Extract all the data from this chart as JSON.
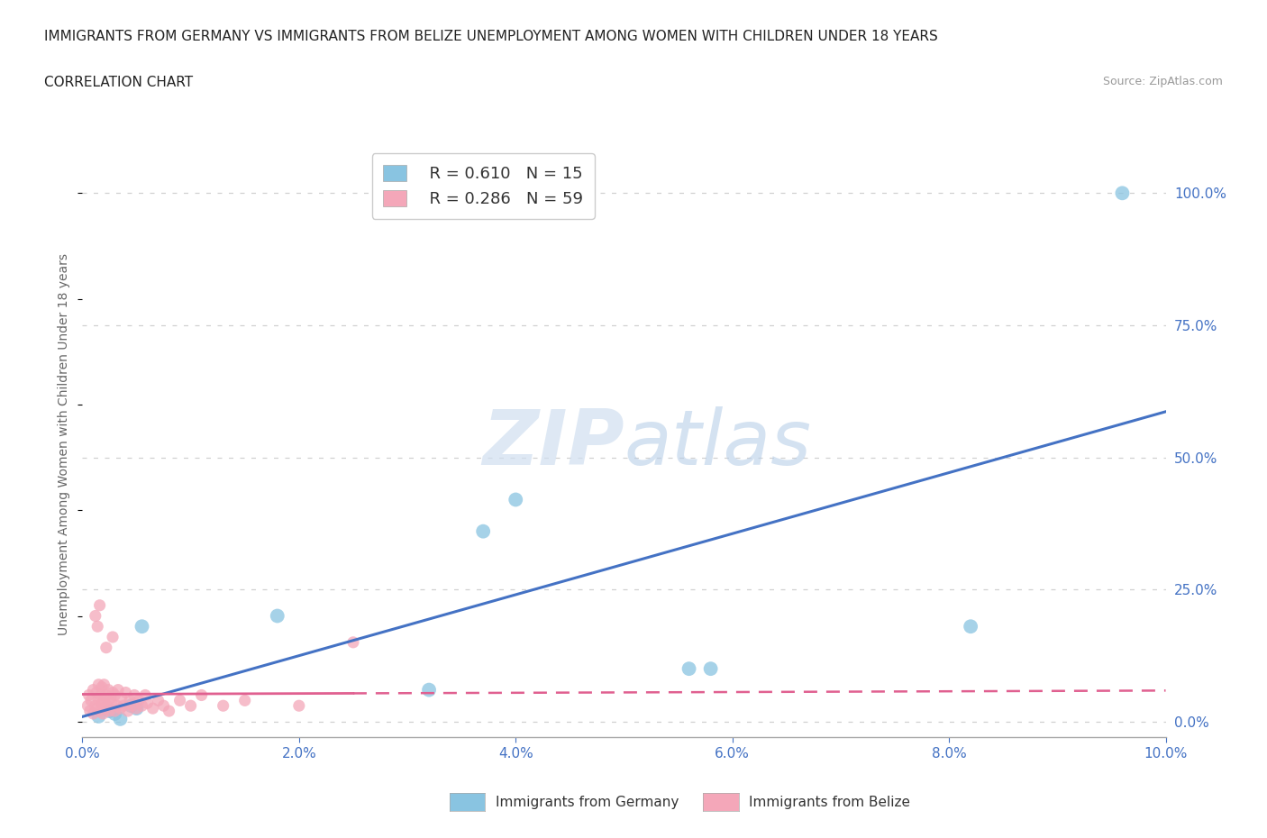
{
  "title_line1": "IMMIGRANTS FROM GERMANY VS IMMIGRANTS FROM BELIZE UNEMPLOYMENT AMONG WOMEN WITH CHILDREN UNDER 18 YEARS",
  "title_line2": "CORRELATION CHART",
  "source": "Source: ZipAtlas.com",
  "ylabel": "Unemployment Among Women with Children Under 18 years",
  "xlim": [
    0.0,
    10.0
  ],
  "ylim": [
    -3.0,
    108.0
  ],
  "x_ticks": [
    0.0,
    2.0,
    4.0,
    6.0,
    8.0,
    10.0
  ],
  "y_ticks": [
    0.0,
    25.0,
    50.0,
    75.0,
    100.0
  ],
  "watermark_zip": "ZIP",
  "watermark_atlas": "atlas",
  "germany_R": 0.61,
  "germany_N": 15,
  "belize_R": 0.286,
  "belize_N": 59,
  "germany_color": "#89c4e1",
  "belize_color": "#f4a7b9",
  "germany_line_color": "#4472c4",
  "belize_line_color": "#e06090",
  "germany_scatter_x": [
    0.15,
    0.25,
    0.3,
    0.35,
    0.45,
    0.5,
    0.55,
    1.8,
    3.2,
    3.7,
    4.0,
    5.6,
    5.8,
    8.2,
    9.6
  ],
  "germany_scatter_y": [
    1.0,
    2.0,
    1.5,
    0.5,
    3.0,
    2.5,
    18.0,
    20.0,
    6.0,
    36.0,
    42.0,
    10.0,
    10.0,
    18.0,
    100.0
  ],
  "belize_scatter_x": [
    0.05,
    0.06,
    0.07,
    0.08,
    0.1,
    0.1,
    0.12,
    0.13,
    0.14,
    0.15,
    0.15,
    0.16,
    0.17,
    0.18,
    0.18,
    0.19,
    0.2,
    0.2,
    0.21,
    0.22,
    0.23,
    0.24,
    0.25,
    0.26,
    0.27,
    0.28,
    0.3,
    0.3,
    0.32,
    0.33,
    0.35,
    0.36,
    0.38,
    0.4,
    0.42,
    0.44,
    0.46,
    0.48,
    0.5,
    0.52,
    0.55,
    0.58,
    0.6,
    0.65,
    0.7,
    0.75,
    0.8,
    0.9,
    1.0,
    1.1,
    1.3,
    1.5,
    2.0,
    2.5,
    0.12,
    0.14,
    0.16,
    0.22,
    0.28
  ],
  "belize_scatter_y": [
    3.0,
    5.0,
    2.0,
    4.0,
    1.5,
    6.0,
    3.0,
    5.5,
    2.5,
    4.0,
    7.0,
    2.0,
    5.0,
    3.5,
    6.5,
    1.5,
    4.0,
    7.0,
    2.5,
    5.0,
    3.0,
    6.0,
    2.0,
    4.5,
    3.5,
    5.5,
    2.0,
    5.0,
    3.0,
    6.0,
    2.5,
    4.5,
    3.0,
    5.5,
    2.0,
    4.0,
    3.0,
    5.0,
    2.5,
    4.0,
    3.0,
    5.0,
    3.5,
    2.5,
    4.0,
    3.0,
    2.0,
    4.0,
    3.0,
    5.0,
    3.0,
    4.0,
    3.0,
    15.0,
    20.0,
    18.0,
    22.0,
    14.0,
    16.0
  ],
  "title_color": "#222222",
  "tick_color": "#4472c4",
  "grid_color": "#d0d0d0",
  "background_color": "#ffffff"
}
